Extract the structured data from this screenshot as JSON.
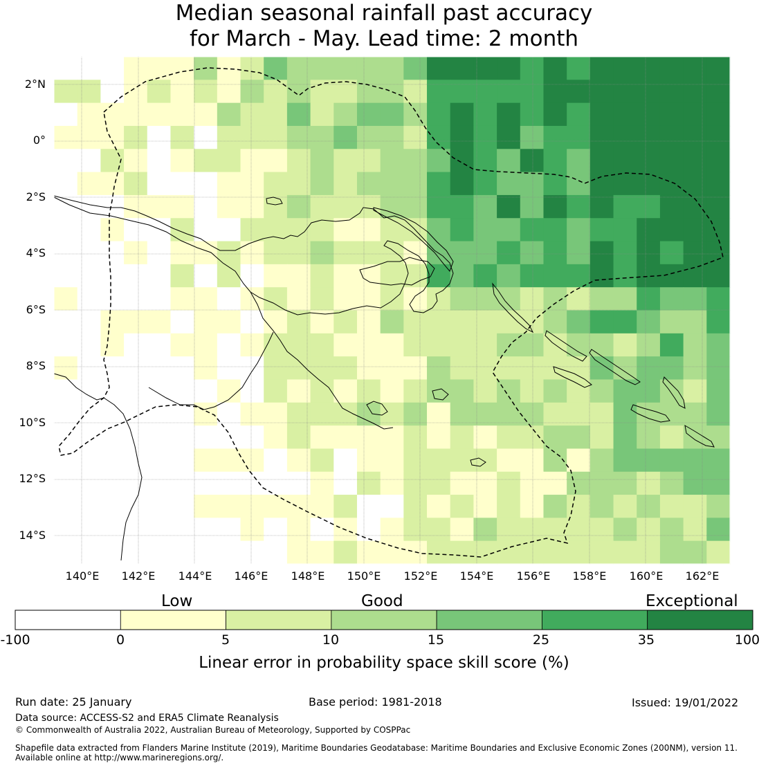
{
  "title": {
    "line1": "Median seasonal rainfall past accuracy",
    "line2": "for March - May. Lead time: 2 month"
  },
  "map": {
    "lat_labels": [
      "2°N",
      "0°",
      "2°S",
      "4°S",
      "6°S",
      "8°S",
      "10°S",
      "12°S",
      "14°S"
    ],
    "lon_labels": [
      "140°E",
      "142°E",
      "144°E",
      "146°E",
      "148°E",
      "150°E",
      "152°E",
      "154°E",
      "156°E",
      "158°E",
      "160°E",
      "162°E"
    ],
    "extent": {
      "lon_min": 139.0,
      "lon_max": 163.0,
      "lat_min": -15.0,
      "lat_max": 3.0
    },
    "cell_size_deg": 0.833,
    "skill_pattern_note": "Higher skill (green) toward the north-east Pacific; low skill (white/yellow) over western land and south-west."
  },
  "colorbar": {
    "categories": [
      "Low",
      "Good",
      "Exceptional"
    ],
    "ticks": [
      "-100",
      "0",
      "5",
      "10",
      "15",
      "25",
      "35",
      "100"
    ],
    "colors": [
      "#ffffff",
      "#ffffcc",
      "#d9f0a3",
      "#addd8e",
      "#78c679",
      "#41ab5d",
      "#238443"
    ],
    "label": "Linear error in probability space skill score (%)"
  },
  "footer": {
    "run_date": "Run date: 25 January",
    "base_period": "Base period: 1981-2018",
    "issued": "Issued: 19/01/2022",
    "data_source": "Data source: ACCESS-S2 and ERA5 Climate Reanalysis",
    "copyright": "© Commonwealth of Australia 2022, Australian Bureau of Meteorology, Supported by COSPPac",
    "shapefile_line1": "Shapefile data extracted from Flanders Marine Institute (2019), Maritime Boundaries Geodatabase: Maritime Boundaries and Exclusive Economic Zones (200NM), version 11.",
    "shapefile_line2": "Available online at http://www.marineregions.org/."
  }
}
